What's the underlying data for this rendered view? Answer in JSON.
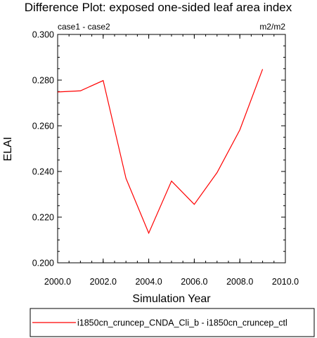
{
  "chart_data": {
    "type": "line",
    "title": "Difference Plot: exposed one-sided leaf area index",
    "subtitle_left": "case1 - case2",
    "subtitle_right": "m2/m2",
    "xlabel": "Simulation Year",
    "ylabel": "ELAI",
    "xlim": [
      2000.0,
      2010.0
    ],
    "ylim": [
      0.2,
      0.3
    ],
    "x_ticks": [
      2000.0,
      2002.0,
      2004.0,
      2006.0,
      2008.0,
      2010.0
    ],
    "x_tick_labels": [
      "2000.0",
      "2002.0",
      "2004.0",
      "2006.0",
      "2008.0",
      "2010.0"
    ],
    "y_ticks": [
      0.2,
      0.22,
      0.24,
      0.26,
      0.28,
      0.3
    ],
    "y_tick_labels": [
      "0.200",
      "0.220",
      "0.240",
      "0.260",
      "0.280",
      "0.300"
    ],
    "x": [
      2000,
      2001,
      2002,
      2003,
      2004,
      2005,
      2006,
      2007,
      2008,
      2009
    ],
    "series": [
      {
        "name": "i1850cn_cruncep_CNDA_Cli_b - i1850cn_cruncep_ctl",
        "color": "#ff0000",
        "values": [
          0.2748,
          0.2753,
          0.2798,
          0.237,
          0.213,
          0.2358,
          0.2256,
          0.2395,
          0.2582,
          0.2848
        ]
      }
    ],
    "grid": false,
    "legend_position": "bottom"
  }
}
